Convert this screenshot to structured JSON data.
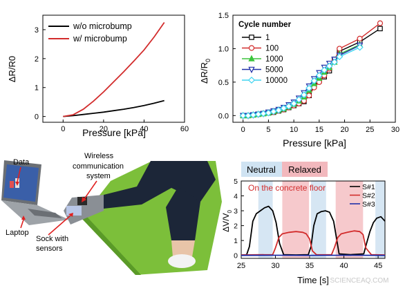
{
  "chart_data": [
    {
      "type": "line",
      "xlabel": "Pressure [kPa]",
      "ylabel": "ΔR/R0",
      "xlim": [
        -10,
        60
      ],
      "ylim": [
        -0.2,
        3.5
      ],
      "xticks": [
        "0",
        "20",
        "40",
        "60"
      ],
      "yticks": [
        "0",
        "1",
        "2",
        "3"
      ],
      "legend": "top-left",
      "series": [
        {
          "name": "w/o microbump",
          "color": "#000000",
          "x": [
            0,
            5,
            10,
            15,
            20,
            25,
            30,
            35,
            40,
            45,
            50
          ],
          "y": [
            0,
            0.03,
            0.07,
            0.11,
            0.15,
            0.2,
            0.25,
            0.31,
            0.38,
            0.46,
            0.55
          ]
        },
        {
          "name": "w/ microbump",
          "color": "#d22b2b",
          "x": [
            0,
            5,
            10,
            15,
            20,
            25,
            30,
            35,
            40,
            45,
            50
          ],
          "y": [
            0,
            0.06,
            0.25,
            0.53,
            0.85,
            1.2,
            1.55,
            1.92,
            2.3,
            2.75,
            3.25
          ]
        }
      ]
    },
    {
      "type": "line",
      "xlabel": "Pressure [kPa]",
      "ylabel": "ΔR/R",
      "ylabel_sub": "0",
      "xlim": [
        -2,
        30
      ],
      "ylim": [
        -0.1,
        1.5
      ],
      "xticks": [
        "0",
        "5",
        "10",
        "15",
        "20",
        "25",
        "30"
      ],
      "yticks": [
        "0.0",
        "0.5",
        "1.0",
        "1.5"
      ],
      "legend_title": "Cycle number",
      "legend": "top-left",
      "series": [
        {
          "name": "1",
          "color": "#000000",
          "marker": "square",
          "x": [
            0,
            1,
            2,
            3,
            4,
            5,
            6,
            7,
            8,
            9,
            10,
            11,
            12,
            13,
            14,
            15,
            16,
            17,
            18,
            19,
            23,
            27
          ],
          "y": [
            0.0,
            0.0,
            0.01,
            0.02,
            0.03,
            0.04,
            0.05,
            0.07,
            0.09,
            0.12,
            0.15,
            0.18,
            0.21,
            0.3,
            0.45,
            0.52,
            0.58,
            0.67,
            0.84,
            0.96,
            1.1,
            1.3
          ]
        },
        {
          "name": "100",
          "color": "#d22b2b",
          "marker": "circle",
          "x": [
            0,
            1,
            2,
            3,
            4,
            5,
            6,
            7,
            8,
            9,
            10,
            11,
            12,
            13,
            14,
            15,
            16,
            17,
            18,
            19,
            23,
            27
          ],
          "y": [
            0.0,
            0.0,
            0.01,
            0.02,
            0.03,
            0.04,
            0.05,
            0.07,
            0.09,
            0.12,
            0.15,
            0.18,
            0.22,
            0.3,
            0.42,
            0.5,
            0.6,
            0.7,
            0.82,
            1.0,
            1.15,
            1.38
          ]
        },
        {
          "name": "1000",
          "color": "#3cc43c",
          "marker": "triangle-up",
          "x": [
            0,
            1,
            2,
            3,
            4,
            5,
            6,
            7,
            8,
            9,
            10,
            11,
            12,
            13,
            14,
            15,
            16,
            17,
            18,
            19,
            23
          ],
          "y": [
            0.0,
            0.0,
            0.01,
            0.02,
            0.03,
            0.04,
            0.06,
            0.08,
            0.1,
            0.13,
            0.17,
            0.22,
            0.28,
            0.38,
            0.48,
            0.56,
            0.65,
            0.72,
            0.8,
            0.92,
            1.06
          ]
        },
        {
          "name": "5000",
          "color": "#1f2fa8",
          "marker": "triangle-down",
          "x": [
            0,
            1,
            2,
            3,
            4,
            5,
            6,
            7,
            8,
            9,
            10,
            11,
            12,
            13,
            14,
            15,
            16,
            17,
            18,
            19,
            23
          ],
          "y": [
            0.0,
            0.0,
            0.01,
            0.02,
            0.03,
            0.05,
            0.07,
            0.09,
            0.12,
            0.16,
            0.2,
            0.26,
            0.34,
            0.44,
            0.55,
            0.64,
            0.72,
            0.78,
            0.84,
            0.9,
            1.05
          ]
        },
        {
          "name": "10000",
          "color": "#3fd4f0",
          "marker": "diamond",
          "x": [
            0,
            1,
            2,
            3,
            4,
            5,
            6,
            7,
            8,
            9,
            10,
            11,
            12,
            13,
            14,
            15,
            16,
            17,
            18,
            19,
            23
          ],
          "y": [
            0.0,
            0.0,
            0.01,
            0.02,
            0.03,
            0.04,
            0.06,
            0.08,
            0.11,
            0.14,
            0.18,
            0.24,
            0.31,
            0.41,
            0.52,
            0.6,
            0.68,
            0.74,
            0.8,
            0.88,
            1.02
          ]
        }
      ]
    },
    {
      "type": "line",
      "xlabel": "Time [s]",
      "ylabel": "ΔV/V",
      "ylabel_sub": "0",
      "xlim": [
        25,
        46
      ],
      "ylim": [
        -0.2,
        5
      ],
      "xticks": [
        "25",
        "30",
        "35",
        "40",
        "45"
      ],
      "yticks": [
        "0",
        "1",
        "2",
        "3",
        "4",
        "5"
      ],
      "legend": "top-right",
      "bands": [
        {
          "kind": "neutral",
          "x0": 27.5,
          "x1": 29.6
        },
        {
          "kind": "relaxed",
          "x0": 31.0,
          "x1": 34.9
        },
        {
          "kind": "neutral",
          "x0": 35.2,
          "x1": 37.4
        },
        {
          "kind": "relaxed",
          "x0": 38.8,
          "x1": 42.8
        },
        {
          "kind": "neutral",
          "x0": 44.6,
          "x1": 46.0
        }
      ],
      "series": [
        {
          "name": "S#1",
          "color": "#000000",
          "x": [
            25,
            25.8,
            26.2,
            26.7,
            27.2,
            27.8,
            28.4,
            29.0,
            29.6,
            30.1,
            30.6,
            31.2,
            33,
            34.8,
            35.2,
            35.6,
            36.1,
            36.7,
            37.3,
            37.9,
            38.5,
            38.9,
            39.3,
            41,
            42.9,
            43.3,
            43.8,
            44.3,
            44.8,
            45.4,
            46.0
          ],
          "y": [
            0.02,
            0.05,
            0.6,
            2.3,
            2.8,
            3.0,
            3.2,
            3.3,
            3.0,
            2.2,
            0.8,
            0.05,
            0.03,
            0.05,
            0.6,
            2.0,
            2.8,
            2.95,
            3.0,
            2.9,
            2.3,
            1.2,
            0.1,
            0.05,
            0.1,
            0.8,
            1.6,
            2.2,
            2.5,
            2.6,
            2.3
          ]
        },
        {
          "name": "S#2",
          "color": "#d22b2b",
          "x": [
            25,
            29.6,
            30.0,
            30.5,
            31.0,
            32,
            33,
            34,
            34.5,
            35.0,
            35.4,
            36,
            38.2,
            38.6,
            39.1,
            39.6,
            40.5,
            41.5,
            42.3,
            42.8,
            43.2,
            44,
            46
          ],
          "y": [
            0.03,
            0.05,
            0.5,
            1.2,
            1.45,
            1.55,
            1.6,
            1.55,
            1.45,
            1.1,
            0.3,
            0.04,
            0.05,
            0.5,
            1.2,
            1.45,
            1.55,
            1.65,
            1.6,
            1.4,
            0.5,
            0.05,
            0.03
          ]
        },
        {
          "name": "S#3",
          "color": "#1f2fa8",
          "x": [
            25,
            30,
            35,
            40,
            46
          ],
          "y": [
            0.0,
            0.01,
            0.0,
            0.01,
            0.0
          ]
        }
      ],
      "band_labels": [
        "Neutral",
        "Relaxed"
      ],
      "annotation": "On the concrete floor"
    }
  ],
  "photo": {
    "labels": {
      "data": "Data",
      "wireless_1": "Wireless",
      "wireless_2": "communication",
      "wireless_3": "system",
      "laptop": "Laptop",
      "sock_1": "Sock with",
      "sock_2": "sensors"
    },
    "colors": {
      "mat": "#7cbf3a",
      "mat_dark": "#5a9a28",
      "pants": "#1c2638",
      "sock": "#8a8f95",
      "arrow": "#e02020"
    }
  },
  "watermark": "SCIENCEAQ.COM"
}
